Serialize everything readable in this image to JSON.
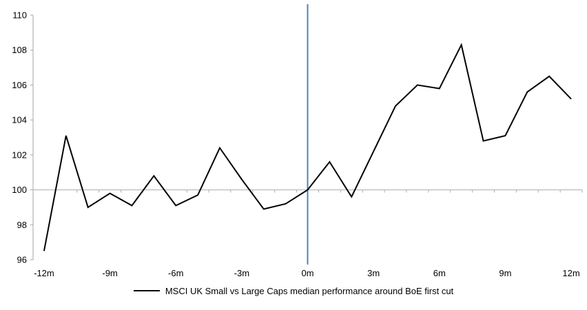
{
  "chart_data": {
    "type": "line",
    "title": "",
    "xlabel": "",
    "ylabel": "",
    "x": [
      -12,
      -11,
      -10,
      -9,
      -8,
      -7,
      -6,
      -5,
      -4,
      -3,
      -2,
      -1,
      0,
      1,
      2,
      3,
      4,
      5,
      6,
      7,
      8,
      9,
      10,
      11,
      12
    ],
    "x_unit": "m",
    "x_tick_months": [
      -12,
      -9,
      -6,
      -3,
      0,
      3,
      6,
      9,
      12
    ],
    "x_tick_labels": [
      "-12m",
      "-9m",
      "-6m",
      "-3m",
      "0m",
      "3m",
      "6m",
      "9m",
      "12m"
    ],
    "ylim": [
      96,
      110
    ],
    "y_ticks": [
      96,
      98,
      100,
      102,
      104,
      106,
      108,
      110
    ],
    "baseline_value": 100,
    "grid": "single horizontal gridline at 100 with category tick marks",
    "legend_position": "bottom",
    "series": [
      {
        "name": "MSCI UK Small vs Large Caps median performance around BoE first cut",
        "color": "#000000",
        "values": [
          96.5,
          103.1,
          99.0,
          99.8,
          99.1,
          100.8,
          99.1,
          99.7,
          102.4,
          100.6,
          98.9,
          99.2,
          100.0,
          101.6,
          99.6,
          102.2,
          104.8,
          106.0,
          105.8,
          108.3,
          102.8,
          103.1,
          105.6,
          106.5,
          105.2
        ]
      }
    ],
    "event_line": {
      "x_month": 0,
      "color": "#4F81BD"
    },
    "axis_color": "#A6A6A6",
    "gridline_color": "#ADADAD"
  }
}
